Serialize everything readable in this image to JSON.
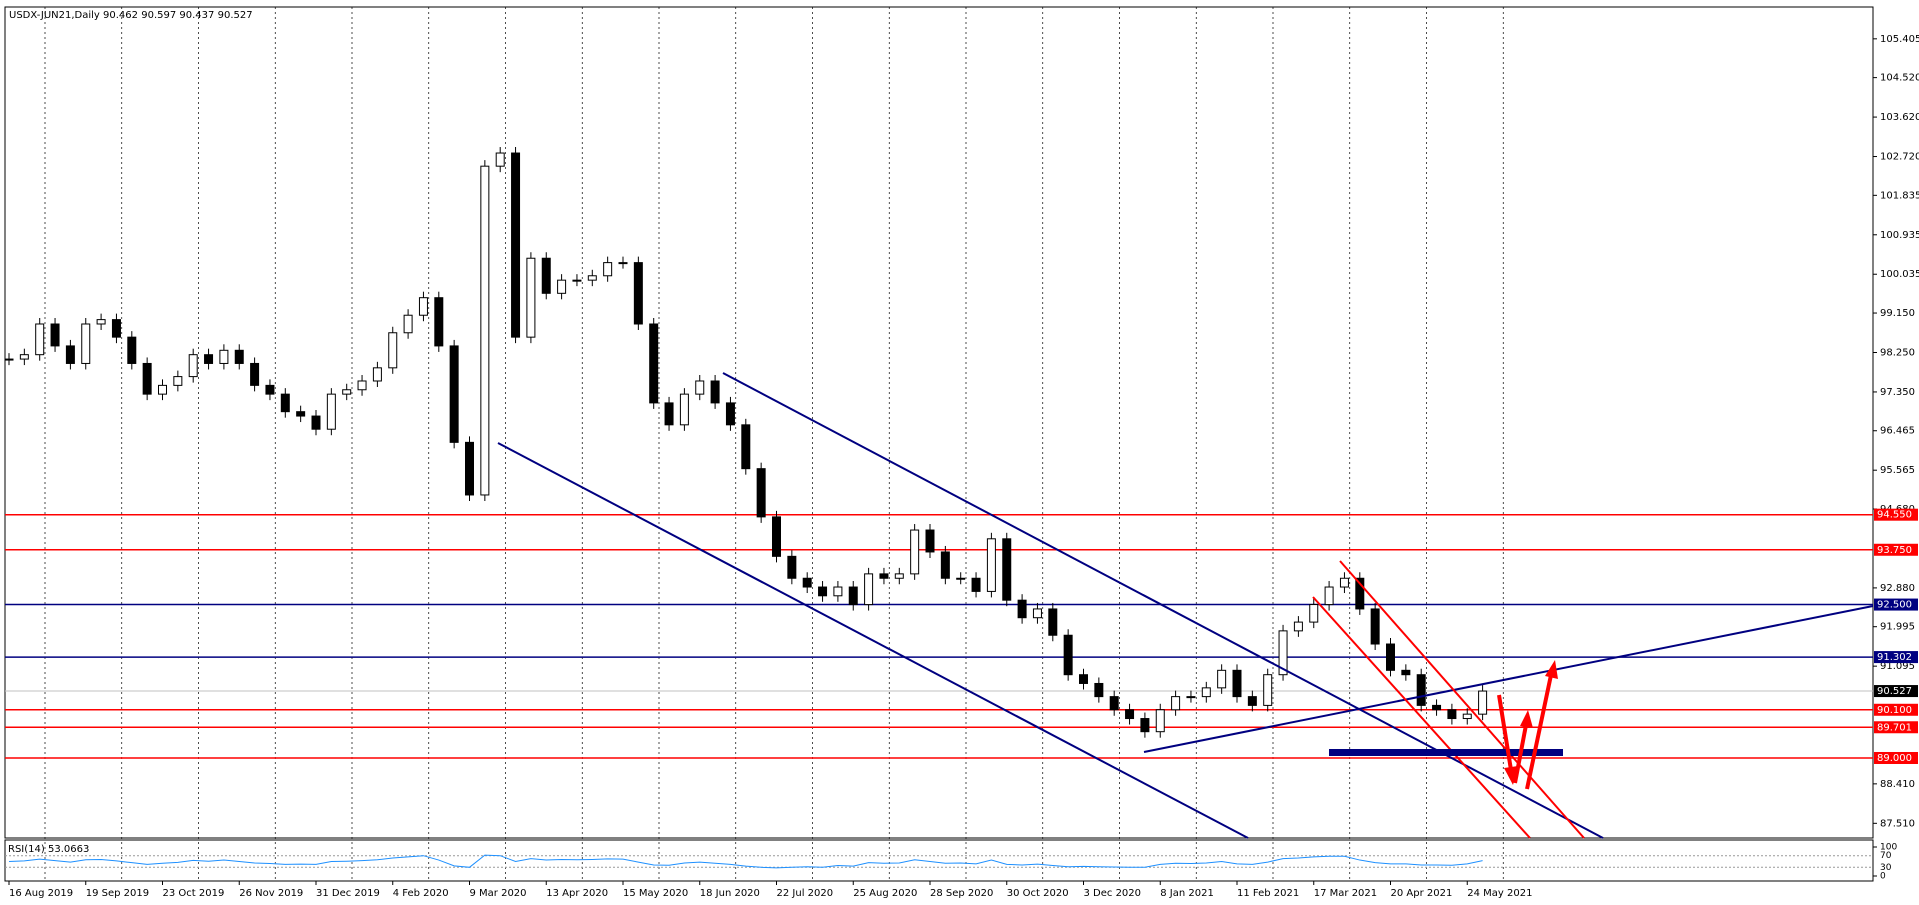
{
  "chart_data": {
    "type": "candlestick",
    "symbol": "USDX-JUN21,Daily",
    "ohlc": [
      90.462,
      90.597,
      90.437,
      90.527
    ],
    "categories": [
      "16 Aug 2019",
      null,
      null,
      null,
      null,
      "19 Sep 2019",
      null,
      null,
      null,
      null,
      "23 Oct 2019",
      null,
      null,
      null,
      null,
      "26 Nov 2019",
      null,
      null,
      null,
      null,
      "31 Dec 2019",
      null,
      null,
      null,
      null,
      "4 Feb 2020",
      null,
      null,
      null,
      null,
      "9 Mar 2020",
      null,
      null,
      null,
      null,
      "13 Apr 2020",
      null,
      null,
      null,
      null,
      "15 May 2020",
      null,
      null,
      null,
      null,
      "18 Jun 2020",
      null,
      null,
      null,
      null,
      "22 Jul 2020",
      null,
      null,
      null,
      null,
      "25 Aug 2020",
      null,
      null,
      null,
      null,
      "28 Sep 2020",
      null,
      null,
      null,
      null,
      "30 Oct 2020",
      null,
      null,
      null,
      null,
      "3 Dec 2020",
      null,
      null,
      null,
      null,
      "8 Jan 2021",
      null,
      null,
      null,
      null,
      "11 Feb 2021",
      null,
      null,
      null,
      null,
      "17 Mar 2021",
      null,
      null,
      null,
      null,
      "20 Apr 2021",
      null,
      null,
      null,
      null,
      "24 May 2021",
      null
    ],
    "series": [
      {
        "name": "USDX-JUN21",
        "color": "#000000",
        "values": [
          98.1,
          98.2,
          98.9,
          98.4,
          98.0,
          98.9,
          99.0,
          98.6,
          98.0,
          97.3,
          97.5,
          97.7,
          98.2,
          98.0,
          98.3,
          98.0,
          97.5,
          97.3,
          96.9,
          96.8,
          96.5,
          97.3,
          97.4,
          97.6,
          97.9,
          98.7,
          99.1,
          99.5,
          98.4,
          96.2,
          95.0,
          102.5,
          102.8,
          98.6,
          100.4,
          99.6,
          99.9,
          99.9,
          100.0,
          100.3,
          100.3,
          98.9,
          97.1,
          96.6,
          97.3,
          97.6,
          97.1,
          96.6,
          95.6,
          94.5,
          93.6,
          93.1,
          92.9,
          92.7,
          92.9,
          92.5,
          93.2,
          93.1,
          93.2,
          94.2,
          93.7,
          93.1,
          93.1,
          92.8,
          94.0,
          92.6,
          92.2,
          92.4,
          91.8,
          90.9,
          90.7,
          90.4,
          90.1,
          89.9,
          89.6,
          90.1,
          90.4,
          90.4,
          90.6,
          91.0,
          90.4,
          90.2,
          90.9,
          91.9,
          92.1,
          92.5,
          92.9,
          93.1,
          92.4,
          91.6,
          91.0,
          90.9,
          90.2,
          90.1,
          89.9,
          90.0,
          90.527
        ]
      }
    ],
    "ylim": [
      87.175,
      106.131
    ],
    "yticks": [
      {
        "value": 105.405,
        "label": "105.405"
      },
      {
        "value": 104.52,
        "label": "104.520"
      },
      {
        "value": 103.62,
        "label": "103.620"
      },
      {
        "value": 102.72,
        "label": "102.720"
      },
      {
        "value": 101.835,
        "label": "101.835"
      },
      {
        "value": 100.935,
        "label": "100.935"
      },
      {
        "value": 100.035,
        "label": "100.035"
      },
      {
        "value": 99.15,
        "label": "99.150"
      },
      {
        "value": 98.25,
        "label": "98.250"
      },
      {
        "value": 97.35,
        "label": "97.350"
      },
      {
        "value": 96.465,
        "label": "96.465"
      },
      {
        "value": 95.565,
        "label": "95.565"
      },
      {
        "value": 94.68,
        "label": "94.680"
      },
      {
        "value": 92.88,
        "label": "92.880"
      },
      {
        "value": 91.995,
        "label": "91.995"
      },
      {
        "value": 91.095,
        "label": "91.095"
      },
      {
        "value": 88.41,
        "label": "88.410"
      },
      {
        "value": 87.51,
        "label": "87.510"
      }
    ],
    "levels": [
      {
        "value": 94.55,
        "label": "94.550",
        "color": "#ff0000"
      },
      {
        "value": 93.75,
        "label": "93.750",
        "color": "#ff0000"
      },
      {
        "value": 92.5,
        "label": "92.500",
        "color": "#000080"
      },
      {
        "value": 91.302,
        "label": "91.302",
        "color": "#000080"
      },
      {
        "value": 90.1,
        "label": "90.100",
        "color": "#ff0000"
      },
      {
        "value": 89.701,
        "label": "89.701",
        "color": "#ff0000"
      },
      {
        "value": 89.0,
        "label": "89.000",
        "color": "#ff0000"
      }
    ],
    "current": {
      "value": 90.527,
      "label": "90.527"
    },
    "rsi": {
      "name": "RSI(14)",
      "last": 53.0663,
      "color": "#1e90ff",
      "ylim": [
        0,
        100
      ],
      "yticks": [
        100,
        70,
        30,
        0
      ],
      "values": [
        50,
        52,
        58,
        53,
        48,
        56,
        57,
        52,
        46,
        40,
        44,
        47,
        54,
        51,
        55,
        50,
        45,
        43,
        40,
        41,
        40,
        50,
        51,
        53,
        56,
        62,
        66,
        70,
        55,
        35,
        30,
        72,
        70,
        50,
        60,
        55,
        57,
        56,
        57,
        59,
        58,
        48,
        38,
        37,
        45,
        48,
        44,
        40,
        34,
        30,
        28,
        30,
        32,
        30,
        36,
        34,
        46,
        44,
        45,
        56,
        50,
        44,
        45,
        42,
        55,
        40,
        38,
        41,
        36,
        32,
        33,
        32,
        31,
        30,
        30,
        40,
        44,
        43,
        45,
        50,
        42,
        40,
        48,
        60,
        62,
        66,
        68,
        68,
        55,
        46,
        42,
        42,
        38,
        38,
        37,
        42,
        53.0663
      ]
    }
  }
}
